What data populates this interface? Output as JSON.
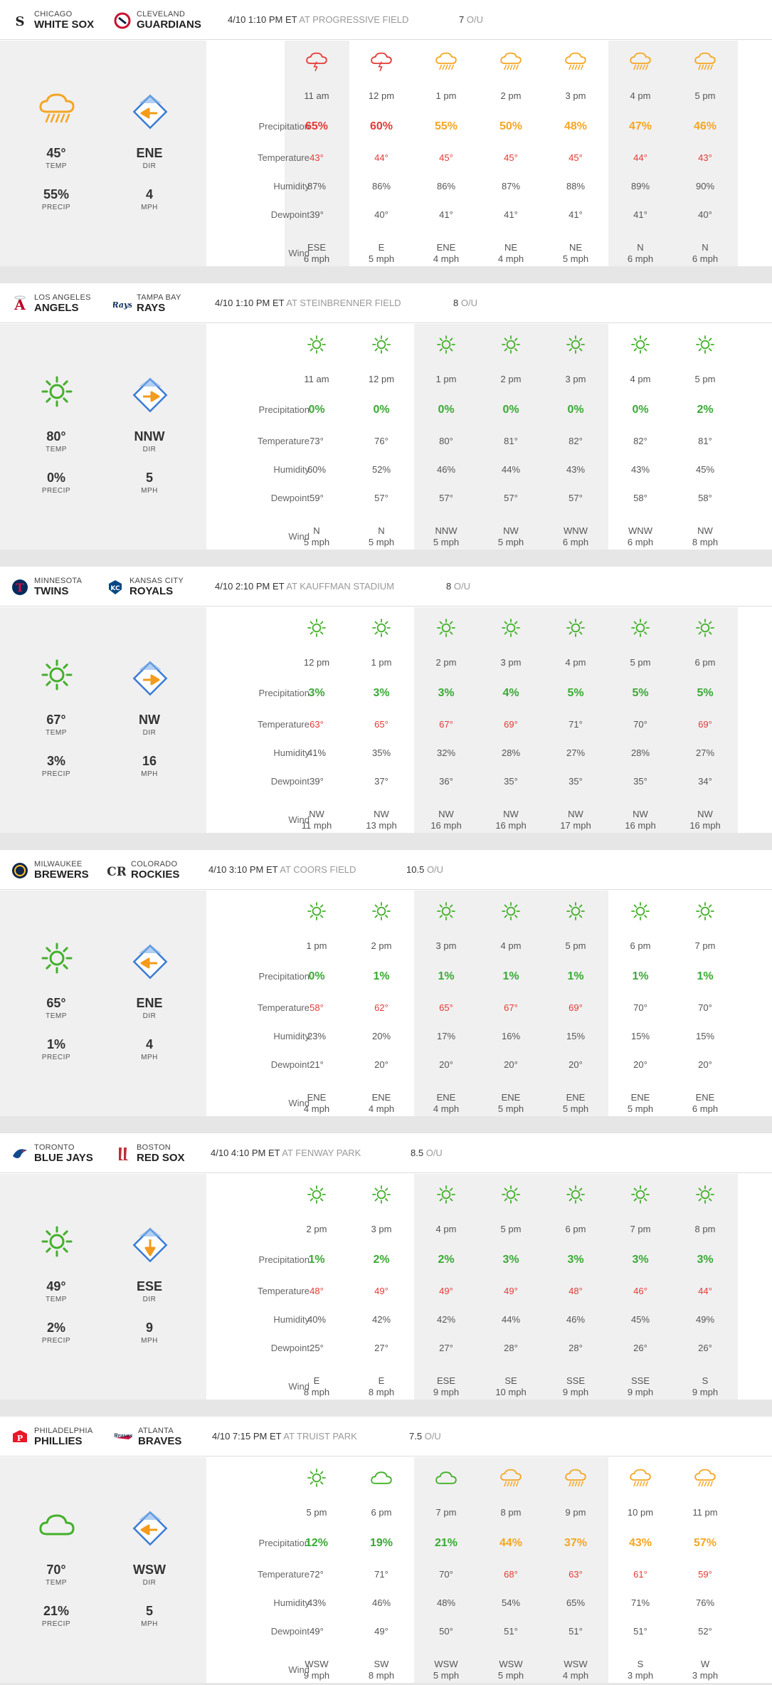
{
  "colors": {
    "rain_icon": "#f5a623",
    "storm_icon": "#e53935",
    "sun_icon": "#43b02a",
    "diamond_border": "#3a7bd5",
    "wind_arrow": "#f29b1d",
    "precip_red": "#e53935",
    "precip_orange": "#f5a623",
    "precip_green": "#3aaa35",
    "temp_red": "#e53935",
    "temp_gray": "#555555"
  },
  "labels": {
    "precipitation": "Precipitation",
    "temperature": "Temperature",
    "humidity": "Humidity",
    "dewpoint": "Dewpoint",
    "wind": "Wind",
    "temp": "TEMP",
    "precip": "PRECIP",
    "dir": "DIR",
    "mph": "MPH",
    "ou": "O/U"
  },
  "games": [
    {
      "away": {
        "city": "CHICAGO",
        "name": "WHITE SOX",
        "logo": "white-sox-logo"
      },
      "home": {
        "city": "CLEVELAND",
        "name": "GUARDIANS",
        "logo": "guardians-logo"
      },
      "datetime": "4/10 1:10 PM ET",
      "venue": "AT PROGRESSIVE FIELD",
      "ou": "7",
      "summary": {
        "icon": "rain-icon",
        "temp": "45°",
        "precip": "55%",
        "dir": "ENE",
        "mph": "4",
        "arrow_deg": 180
      },
      "hours": [
        {
          "time": "11 am",
          "icon": "storm-icon",
          "precip": "65%",
          "pc": "red",
          "temp": "43°",
          "tc": "red",
          "humidity": "87%",
          "dewpoint": "39°",
          "wdir": "ESE",
          "wspd": "6 mph"
        },
        {
          "time": "12 pm",
          "icon": "storm-icon",
          "precip": "60%",
          "pc": "red",
          "temp": "44°",
          "tc": "red",
          "humidity": "86%",
          "dewpoint": "40°",
          "wdir": "E",
          "wspd": "5 mph"
        },
        {
          "time": "1 pm",
          "icon": "rain-icon",
          "precip": "55%",
          "pc": "orange",
          "temp": "45°",
          "tc": "red",
          "humidity": "86%",
          "dewpoint": "41°",
          "wdir": "ENE",
          "wspd": "4 mph"
        },
        {
          "time": "2 pm",
          "icon": "rain-icon",
          "precip": "50%",
          "pc": "orange",
          "temp": "45°",
          "tc": "red",
          "humidity": "87%",
          "dewpoint": "41°",
          "wdir": "NE",
          "wspd": "4 mph"
        },
        {
          "time": "3 pm",
          "icon": "rain-icon",
          "precip": "48%",
          "pc": "orange",
          "temp": "45°",
          "tc": "red",
          "humidity": "88%",
          "dewpoint": "41°",
          "wdir": "NE",
          "wspd": "5 mph"
        },
        {
          "time": "4 pm",
          "icon": "rain-icon",
          "precip": "47%",
          "pc": "orange",
          "temp": "44°",
          "tc": "red",
          "humidity": "89%",
          "dewpoint": "41°",
          "wdir": "N",
          "wspd": "6 mph"
        },
        {
          "time": "5 pm",
          "icon": "rain-icon",
          "precip": "46%",
          "pc": "orange",
          "temp": "43°",
          "tc": "red",
          "humidity": "90%",
          "dewpoint": "40°",
          "wdir": "N",
          "wspd": "6 mph"
        }
      ]
    },
    {
      "away": {
        "city": "LOS ANGELES",
        "name": "ANGELS",
        "logo": "angels-logo"
      },
      "home": {
        "city": "TAMPA BAY",
        "name": "RAYS",
        "logo": "rays-logo"
      },
      "datetime": "4/10 1:10 PM ET",
      "venue": "AT STEINBRENNER FIELD",
      "ou": "8",
      "summary": {
        "icon": "sun-icon",
        "temp": "80°",
        "precip": "0%",
        "dir": "NNW",
        "mph": "5",
        "arrow_deg": 0
      },
      "hours": [
        {
          "time": "11 am",
          "icon": "sun-icon",
          "precip": "0%",
          "pc": "green",
          "temp": "73°",
          "tc": "gray",
          "humidity": "60%",
          "dewpoint": "59°",
          "wdir": "N",
          "wspd": "5 mph"
        },
        {
          "time": "12 pm",
          "icon": "sun-icon",
          "precip": "0%",
          "pc": "green",
          "temp": "76°",
          "tc": "gray",
          "humidity": "52%",
          "dewpoint": "57°",
          "wdir": "N",
          "wspd": "5 mph"
        },
        {
          "time": "1 pm",
          "icon": "sun-icon",
          "precip": "0%",
          "pc": "green",
          "temp": "80°",
          "tc": "gray",
          "humidity": "46%",
          "dewpoint": "57°",
          "wdir": "NNW",
          "wspd": "5 mph"
        },
        {
          "time": "2 pm",
          "icon": "sun-icon",
          "precip": "0%",
          "pc": "green",
          "temp": "81°",
          "tc": "gray",
          "humidity": "44%",
          "dewpoint": "57°",
          "wdir": "NW",
          "wspd": "5 mph"
        },
        {
          "time": "3 pm",
          "icon": "sun-icon",
          "precip": "0%",
          "pc": "green",
          "temp": "82°",
          "tc": "gray",
          "humidity": "43%",
          "dewpoint": "57°",
          "wdir": "WNW",
          "wspd": "6 mph"
        },
        {
          "time": "4 pm",
          "icon": "sun-icon",
          "precip": "0%",
          "pc": "green",
          "temp": "82°",
          "tc": "gray",
          "humidity": "43%",
          "dewpoint": "58°",
          "wdir": "WNW",
          "wspd": "6 mph"
        },
        {
          "time": "5 pm",
          "icon": "sun-icon",
          "precip": "2%",
          "pc": "green",
          "temp": "81°",
          "tc": "gray",
          "humidity": "45%",
          "dewpoint": "58°",
          "wdir": "NW",
          "wspd": "8 mph"
        }
      ]
    },
    {
      "away": {
        "city": "MINNESOTA",
        "name": "TWINS",
        "logo": "twins-logo"
      },
      "home": {
        "city": "KANSAS CITY",
        "name": "ROYALS",
        "logo": "royals-logo"
      },
      "datetime": "4/10 2:10 PM ET",
      "venue": "AT KAUFFMAN STADIUM",
      "ou": "8",
      "summary": {
        "icon": "sun-icon",
        "temp": "67°",
        "precip": "3%",
        "dir": "NW",
        "mph": "16",
        "arrow_deg": 0
      },
      "hours": [
        {
          "time": "12 pm",
          "icon": "sun-icon",
          "precip": "3%",
          "pc": "green",
          "temp": "63°",
          "tc": "red",
          "humidity": "41%",
          "dewpoint": "39°",
          "wdir": "NW",
          "wspd": "11 mph"
        },
        {
          "time": "1 pm",
          "icon": "sun-icon",
          "precip": "3%",
          "pc": "green",
          "temp": "65°",
          "tc": "red",
          "humidity": "35%",
          "dewpoint": "37°",
          "wdir": "NW",
          "wspd": "13 mph"
        },
        {
          "time": "2 pm",
          "icon": "sun-icon",
          "precip": "3%",
          "pc": "green",
          "temp": "67°",
          "tc": "red",
          "humidity": "32%",
          "dewpoint": "36°",
          "wdir": "NW",
          "wspd": "16 mph"
        },
        {
          "time": "3 pm",
          "icon": "sun-icon",
          "precip": "4%",
          "pc": "green",
          "temp": "69°",
          "tc": "red",
          "humidity": "28%",
          "dewpoint": "35°",
          "wdir": "NW",
          "wspd": "16 mph"
        },
        {
          "time": "4 pm",
          "icon": "sun-icon",
          "precip": "5%",
          "pc": "green",
          "temp": "71°",
          "tc": "gray",
          "humidity": "27%",
          "dewpoint": "35°",
          "wdir": "NW",
          "wspd": "17 mph"
        },
        {
          "time": "5 pm",
          "icon": "sun-icon",
          "precip": "5%",
          "pc": "green",
          "temp": "70°",
          "tc": "gray",
          "humidity": "28%",
          "dewpoint": "35°",
          "wdir": "NW",
          "wspd": "16 mph"
        },
        {
          "time": "6 pm",
          "icon": "sun-icon",
          "precip": "5%",
          "pc": "green",
          "temp": "69°",
          "tc": "red",
          "humidity": "27%",
          "dewpoint": "34°",
          "wdir": "NW",
          "wspd": "16 mph"
        }
      ]
    },
    {
      "away": {
        "city": "MILWAUKEE",
        "name": "BREWERS",
        "logo": "brewers-logo"
      },
      "home": {
        "city": "COLORADO",
        "name": "ROCKIES",
        "logo": "rockies-logo"
      },
      "datetime": "4/10 3:10 PM ET",
      "venue": "AT COORS FIELD",
      "ou": "10.5",
      "summary": {
        "icon": "sun-icon",
        "temp": "65°",
        "precip": "1%",
        "dir": "ENE",
        "mph": "4",
        "arrow_deg": 180
      },
      "hours": [
        {
          "time": "1 pm",
          "icon": "sun-icon",
          "precip": "0%",
          "pc": "green",
          "temp": "58°",
          "tc": "red",
          "humidity": "23%",
          "dewpoint": "21°",
          "wdir": "ENE",
          "wspd": "4 mph"
        },
        {
          "time": "2 pm",
          "icon": "sun-icon",
          "precip": "1%",
          "pc": "green",
          "temp": "62°",
          "tc": "red",
          "humidity": "20%",
          "dewpoint": "20°",
          "wdir": "ENE",
          "wspd": "4 mph"
        },
        {
          "time": "3 pm",
          "icon": "sun-icon",
          "precip": "1%",
          "pc": "green",
          "temp": "65°",
          "tc": "red",
          "humidity": "17%",
          "dewpoint": "20°",
          "wdir": "ENE",
          "wspd": "4 mph"
        },
        {
          "time": "4 pm",
          "icon": "sun-icon",
          "precip": "1%",
          "pc": "green",
          "temp": "67°",
          "tc": "red",
          "humidity": "16%",
          "dewpoint": "20°",
          "wdir": "ENE",
          "wspd": "5 mph"
        },
        {
          "time": "5 pm",
          "icon": "sun-icon",
          "precip": "1%",
          "pc": "green",
          "temp": "69°",
          "tc": "red",
          "humidity": "15%",
          "dewpoint": "20°",
          "wdir": "ENE",
          "wspd": "5 mph"
        },
        {
          "time": "6 pm",
          "icon": "sun-icon",
          "precip": "1%",
          "pc": "green",
          "temp": "70°",
          "tc": "gray",
          "humidity": "15%",
          "dewpoint": "20°",
          "wdir": "ENE",
          "wspd": "5 mph"
        },
        {
          "time": "7 pm",
          "icon": "sun-icon",
          "precip": "1%",
          "pc": "green",
          "temp": "70°",
          "tc": "gray",
          "humidity": "15%",
          "dewpoint": "20°",
          "wdir": "ENE",
          "wspd": "6 mph"
        }
      ]
    },
    {
      "away": {
        "city": "TORONTO",
        "name": "BLUE JAYS",
        "logo": "blue-jays-logo"
      },
      "home": {
        "city": "BOSTON",
        "name": "RED SOX",
        "logo": "red-sox-logo"
      },
      "datetime": "4/10 4:10 PM ET",
      "venue": "AT FENWAY PARK",
      "ou": "8.5",
      "summary": {
        "icon": "sun-icon",
        "temp": "49°",
        "precip": "2%",
        "dir": "ESE",
        "mph": "9",
        "arrow_deg": 90
      },
      "hours": [
        {
          "time": "2 pm",
          "icon": "sun-icon",
          "precip": "1%",
          "pc": "green",
          "temp": "48°",
          "tc": "red",
          "humidity": "40%",
          "dewpoint": "25°",
          "wdir": "E",
          "wspd": "8 mph"
        },
        {
          "time": "3 pm",
          "icon": "sun-icon",
          "precip": "2%",
          "pc": "green",
          "temp": "49°",
          "tc": "red",
          "humidity": "42%",
          "dewpoint": "27°",
          "wdir": "E",
          "wspd": "8 mph"
        },
        {
          "time": "4 pm",
          "icon": "sun-icon",
          "precip": "2%",
          "pc": "green",
          "temp": "49°",
          "tc": "red",
          "humidity": "42%",
          "dewpoint": "27°",
          "wdir": "ESE",
          "wspd": "9 mph"
        },
        {
          "time": "5 pm",
          "icon": "sun-icon",
          "precip": "3%",
          "pc": "green",
          "temp": "49°",
          "tc": "red",
          "humidity": "44%",
          "dewpoint": "28°",
          "wdir": "SE",
          "wspd": "10 mph"
        },
        {
          "time": "6 pm",
          "icon": "sun-icon",
          "precip": "3%",
          "pc": "green",
          "temp": "48°",
          "tc": "red",
          "humidity": "46%",
          "dewpoint": "28°",
          "wdir": "SSE",
          "wspd": "9 mph"
        },
        {
          "time": "7 pm",
          "icon": "sun-icon",
          "precip": "3%",
          "pc": "green",
          "temp": "46°",
          "tc": "red",
          "humidity": "45%",
          "dewpoint": "26°",
          "wdir": "SSE",
          "wspd": "9 mph"
        },
        {
          "time": "8 pm",
          "icon": "sun-icon",
          "precip": "3%",
          "pc": "green",
          "temp": "44°",
          "tc": "red",
          "humidity": "49%",
          "dewpoint": "26°",
          "wdir": "S",
          "wspd": "9 mph"
        }
      ]
    },
    {
      "away": {
        "city": "PHILADELPHIA",
        "name": "PHILLIES",
        "logo": "phillies-logo"
      },
      "home": {
        "city": "ATLANTA",
        "name": "BRAVES",
        "logo": "braves-logo"
      },
      "datetime": "4/10 7:15 PM ET",
      "venue": "AT TRUIST PARK",
      "ou": "7.5",
      "summary": {
        "icon": "cloud-icon",
        "temp": "70°",
        "precip": "21%",
        "dir": "WSW",
        "mph": "5",
        "arrow_deg": 180
      },
      "hours": [
        {
          "time": "5 pm",
          "icon": "sun-icon",
          "precip": "12%",
          "pc": "green",
          "temp": "72°",
          "tc": "gray",
          "humidity": "43%",
          "dewpoint": "49°",
          "wdir": "WSW",
          "wspd": "9 mph"
        },
        {
          "time": "6 pm",
          "icon": "cloud-icon",
          "precip": "19%",
          "pc": "green",
          "temp": "71°",
          "tc": "gray",
          "humidity": "46%",
          "dewpoint": "49°",
          "wdir": "SW",
          "wspd": "8 mph"
        },
        {
          "time": "7 pm",
          "icon": "cloud-icon",
          "precip": "21%",
          "pc": "green",
          "temp": "70°",
          "tc": "gray",
          "humidity": "48%",
          "dewpoint": "50°",
          "wdir": "WSW",
          "wspd": "5 mph"
        },
        {
          "time": "8 pm",
          "icon": "rain-icon",
          "precip": "44%",
          "pc": "orange",
          "temp": "68°",
          "tc": "red",
          "humidity": "54%",
          "dewpoint": "51°",
          "wdir": "WSW",
          "wspd": "5 mph"
        },
        {
          "time": "9 pm",
          "icon": "rain-icon",
          "precip": "37%",
          "pc": "orange",
          "temp": "63°",
          "tc": "red",
          "humidity": "65%",
          "dewpoint": "51°",
          "wdir": "WSW",
          "wspd": "4 mph"
        },
        {
          "time": "10 pm",
          "icon": "rain-icon",
          "precip": "43%",
          "pc": "orange",
          "temp": "61°",
          "tc": "red",
          "humidity": "71%",
          "dewpoint": "51°",
          "wdir": "S",
          "wspd": "3 mph"
        },
        {
          "time": "11 pm",
          "icon": "rain-icon",
          "precip": "57%",
          "pc": "orange",
          "temp": "59°",
          "tc": "red",
          "humidity": "76%",
          "dewpoint": "52°",
          "wdir": "W",
          "wspd": "3 mph"
        }
      ]
    }
  ]
}
